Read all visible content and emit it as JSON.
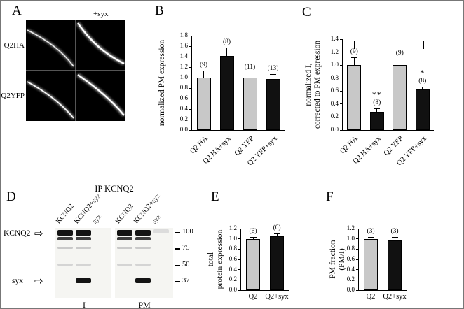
{
  "figure": {
    "panel_labels": {
      "A": "A",
      "B": "B",
      "C": "C",
      "D": "D",
      "E": "E",
      "F": "F"
    }
  },
  "panel_a": {
    "condition_label": "+syx",
    "row_labels": [
      "Q2HA",
      "Q2YFP"
    ]
  },
  "panel_d": {
    "ip_label": "IP KCNQ2",
    "lane_labels": [
      "KCNQ2",
      "KCNQ2+syx",
      "syx",
      "KCNQ2",
      "KCNQ2+syx",
      "syx"
    ],
    "protein_labels": [
      "KCNQ2",
      "syx"
    ],
    "arrow_icon": "⇨",
    "mw_markers": [
      "100",
      "75",
      "50",
      "37"
    ],
    "fraction_labels": [
      "I",
      "PM"
    ],
    "bands": {
      "kcnq2_lanes": [
        1,
        2,
        4,
        5
      ],
      "syx_lanes": [
        2,
        5
      ],
      "faint_mid_lanes": [
        1,
        2,
        4,
        5
      ],
      "faint_top_lanes": [
        6
      ]
    }
  },
  "chart_data": [
    {
      "id": "B",
      "type": "bar",
      "title": "",
      "ylabel": "normalized PM expression",
      "categories": [
        "Q2 HA",
        "Q2 HA+syx",
        "Q2 YFP",
        "Q2 YFP+syx"
      ],
      "values": [
        1.0,
        1.42,
        1.0,
        0.97
      ],
      "errors": [
        0.13,
        0.15,
        0.1,
        0.1
      ],
      "counts": [
        "(9)",
        "(8)",
        "(11)",
        "(13)"
      ],
      "bar_colors": [
        "#c8c8c8",
        "#111111",
        "#c8c8c8",
        "#111111"
      ],
      "ylim": [
        0,
        1.8
      ],
      "ytick_step": 0.2,
      "xlabels_rotated": true
    },
    {
      "id": "C",
      "type": "bar",
      "title": "",
      "ylabel": "normalized I,\ncorrected to PM expression",
      "categories": [
        "Q2 HA",
        "Q2 HA+syx",
        "Q2 YFP",
        "Q2 YFP+syx"
      ],
      "values": [
        1.0,
        0.28,
        1.0,
        0.62
      ],
      "errors": [
        0.12,
        0.05,
        0.1,
        0.05
      ],
      "counts": [
        "(9)",
        "(8)",
        "(9)",
        "(8)"
      ],
      "significance": [
        "",
        "**",
        "",
        "*"
      ],
      "brackets": [
        {
          "from": 0,
          "to": 1
        },
        {
          "from": 2,
          "to": 3
        }
      ],
      "bar_colors": [
        "#c8c8c8",
        "#111111",
        "#c8c8c8",
        "#111111"
      ],
      "ylim": [
        0,
        1.4
      ],
      "ytick_step": 0.2,
      "xlabels_rotated": true
    },
    {
      "id": "E",
      "type": "bar",
      "title": "",
      "ylabel": "total\nprotein expression",
      "categories": [
        "Q2",
        "Q2+syx"
      ],
      "values": [
        1.0,
        1.05
      ],
      "errors": [
        0.04,
        0.06
      ],
      "counts": [
        "(6)",
        "(6)"
      ],
      "bar_colors": [
        "#c8c8c8",
        "#111111"
      ],
      "ylim": [
        0,
        1.2
      ],
      "ytick_step": 0.2,
      "xlabels_rotated": false
    },
    {
      "id": "F",
      "type": "bar",
      "title": "",
      "ylabel": "PM fraction (PM/I)",
      "categories": [
        "Q2",
        "Q2+syx"
      ],
      "values": [
        1.0,
        0.97
      ],
      "errors": [
        0.03,
        0.07
      ],
      "counts": [
        "(3)",
        "(3)"
      ],
      "bar_colors": [
        "#c8c8c8",
        "#111111"
      ],
      "ylim": [
        0,
        1.2
      ],
      "ytick_step": 0.2,
      "xlabels_rotated": false
    }
  ]
}
